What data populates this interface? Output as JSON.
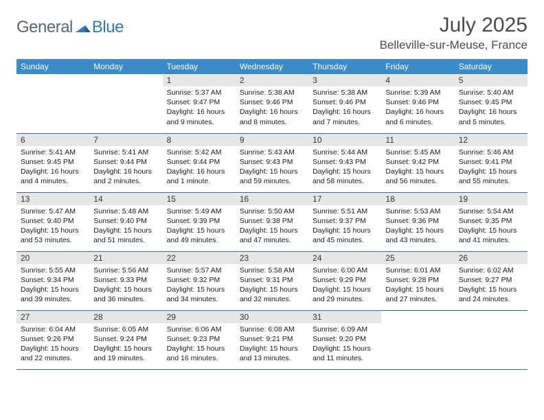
{
  "logo": {
    "general": "General",
    "blue": "Blue"
  },
  "title": "July 2025",
  "location": "Belleville-sur-Meuse, France",
  "colors": {
    "header_bg": "#3b8bc9",
    "header_text": "#ffffff",
    "daynum_bg": "#e6e6e6",
    "row_border": "#2e6da4",
    "body_text": "#1a1a1a",
    "title_text": "#4a4a4a",
    "logo_gray": "#5a6570",
    "logo_blue": "#2a7ab8"
  },
  "day_headers": [
    "Sunday",
    "Monday",
    "Tuesday",
    "Wednesday",
    "Thursday",
    "Friday",
    "Saturday"
  ],
  "weeks": [
    [
      null,
      null,
      {
        "n": "1",
        "sr": "Sunrise: 5:37 AM",
        "ss": "Sunset: 9:47 PM",
        "d1": "Daylight: 16 hours",
        "d2": "and 9 minutes."
      },
      {
        "n": "2",
        "sr": "Sunrise: 5:38 AM",
        "ss": "Sunset: 9:46 PM",
        "d1": "Daylight: 16 hours",
        "d2": "and 8 minutes."
      },
      {
        "n": "3",
        "sr": "Sunrise: 5:38 AM",
        "ss": "Sunset: 9:46 PM",
        "d1": "Daylight: 16 hours",
        "d2": "and 7 minutes."
      },
      {
        "n": "4",
        "sr": "Sunrise: 5:39 AM",
        "ss": "Sunset: 9:46 PM",
        "d1": "Daylight: 16 hours",
        "d2": "and 6 minutes."
      },
      {
        "n": "5",
        "sr": "Sunrise: 5:40 AM",
        "ss": "Sunset: 9:45 PM",
        "d1": "Daylight: 16 hours",
        "d2": "and 5 minutes."
      }
    ],
    [
      {
        "n": "6",
        "sr": "Sunrise: 5:41 AM",
        "ss": "Sunset: 9:45 PM",
        "d1": "Daylight: 16 hours",
        "d2": "and 4 minutes."
      },
      {
        "n": "7",
        "sr": "Sunrise: 5:41 AM",
        "ss": "Sunset: 9:44 PM",
        "d1": "Daylight: 16 hours",
        "d2": "and 2 minutes."
      },
      {
        "n": "8",
        "sr": "Sunrise: 5:42 AM",
        "ss": "Sunset: 9:44 PM",
        "d1": "Daylight: 16 hours",
        "d2": "and 1 minute."
      },
      {
        "n": "9",
        "sr": "Sunrise: 5:43 AM",
        "ss": "Sunset: 9:43 PM",
        "d1": "Daylight: 15 hours",
        "d2": "and 59 minutes."
      },
      {
        "n": "10",
        "sr": "Sunrise: 5:44 AM",
        "ss": "Sunset: 9:43 PM",
        "d1": "Daylight: 15 hours",
        "d2": "and 58 minutes."
      },
      {
        "n": "11",
        "sr": "Sunrise: 5:45 AM",
        "ss": "Sunset: 9:42 PM",
        "d1": "Daylight: 15 hours",
        "d2": "and 56 minutes."
      },
      {
        "n": "12",
        "sr": "Sunrise: 5:46 AM",
        "ss": "Sunset: 9:41 PM",
        "d1": "Daylight: 15 hours",
        "d2": "and 55 minutes."
      }
    ],
    [
      {
        "n": "13",
        "sr": "Sunrise: 5:47 AM",
        "ss": "Sunset: 9:40 PM",
        "d1": "Daylight: 15 hours",
        "d2": "and 53 minutes."
      },
      {
        "n": "14",
        "sr": "Sunrise: 5:48 AM",
        "ss": "Sunset: 9:40 PM",
        "d1": "Daylight: 15 hours",
        "d2": "and 51 minutes."
      },
      {
        "n": "15",
        "sr": "Sunrise: 5:49 AM",
        "ss": "Sunset: 9:39 PM",
        "d1": "Daylight: 15 hours",
        "d2": "and 49 minutes."
      },
      {
        "n": "16",
        "sr": "Sunrise: 5:50 AM",
        "ss": "Sunset: 9:38 PM",
        "d1": "Daylight: 15 hours",
        "d2": "and 47 minutes."
      },
      {
        "n": "17",
        "sr": "Sunrise: 5:51 AM",
        "ss": "Sunset: 9:37 PM",
        "d1": "Daylight: 15 hours",
        "d2": "and 45 minutes."
      },
      {
        "n": "18",
        "sr": "Sunrise: 5:53 AM",
        "ss": "Sunset: 9:36 PM",
        "d1": "Daylight: 15 hours",
        "d2": "and 43 minutes."
      },
      {
        "n": "19",
        "sr": "Sunrise: 5:54 AM",
        "ss": "Sunset: 9:35 PM",
        "d1": "Daylight: 15 hours",
        "d2": "and 41 minutes."
      }
    ],
    [
      {
        "n": "20",
        "sr": "Sunrise: 5:55 AM",
        "ss": "Sunset: 9:34 PM",
        "d1": "Daylight: 15 hours",
        "d2": "and 39 minutes."
      },
      {
        "n": "21",
        "sr": "Sunrise: 5:56 AM",
        "ss": "Sunset: 9:33 PM",
        "d1": "Daylight: 15 hours",
        "d2": "and 36 minutes."
      },
      {
        "n": "22",
        "sr": "Sunrise: 5:57 AM",
        "ss": "Sunset: 9:32 PM",
        "d1": "Daylight: 15 hours",
        "d2": "and 34 minutes."
      },
      {
        "n": "23",
        "sr": "Sunrise: 5:58 AM",
        "ss": "Sunset: 9:31 PM",
        "d1": "Daylight: 15 hours",
        "d2": "and 32 minutes."
      },
      {
        "n": "24",
        "sr": "Sunrise: 6:00 AM",
        "ss": "Sunset: 9:29 PM",
        "d1": "Daylight: 15 hours",
        "d2": "and 29 minutes."
      },
      {
        "n": "25",
        "sr": "Sunrise: 6:01 AM",
        "ss": "Sunset: 9:28 PM",
        "d1": "Daylight: 15 hours",
        "d2": "and 27 minutes."
      },
      {
        "n": "26",
        "sr": "Sunrise: 6:02 AM",
        "ss": "Sunset: 9:27 PM",
        "d1": "Daylight: 15 hours",
        "d2": "and 24 minutes."
      }
    ],
    [
      {
        "n": "27",
        "sr": "Sunrise: 6:04 AM",
        "ss": "Sunset: 9:26 PM",
        "d1": "Daylight: 15 hours",
        "d2": "and 22 minutes."
      },
      {
        "n": "28",
        "sr": "Sunrise: 6:05 AM",
        "ss": "Sunset: 9:24 PM",
        "d1": "Daylight: 15 hours",
        "d2": "and 19 minutes."
      },
      {
        "n": "29",
        "sr": "Sunrise: 6:06 AM",
        "ss": "Sunset: 9:23 PM",
        "d1": "Daylight: 15 hours",
        "d2": "and 16 minutes."
      },
      {
        "n": "30",
        "sr": "Sunrise: 6:08 AM",
        "ss": "Sunset: 9:21 PM",
        "d1": "Daylight: 15 hours",
        "d2": "and 13 minutes."
      },
      {
        "n": "31",
        "sr": "Sunrise: 6:09 AM",
        "ss": "Sunset: 9:20 PM",
        "d1": "Daylight: 15 hours",
        "d2": "and 11 minutes."
      },
      null,
      null
    ]
  ]
}
